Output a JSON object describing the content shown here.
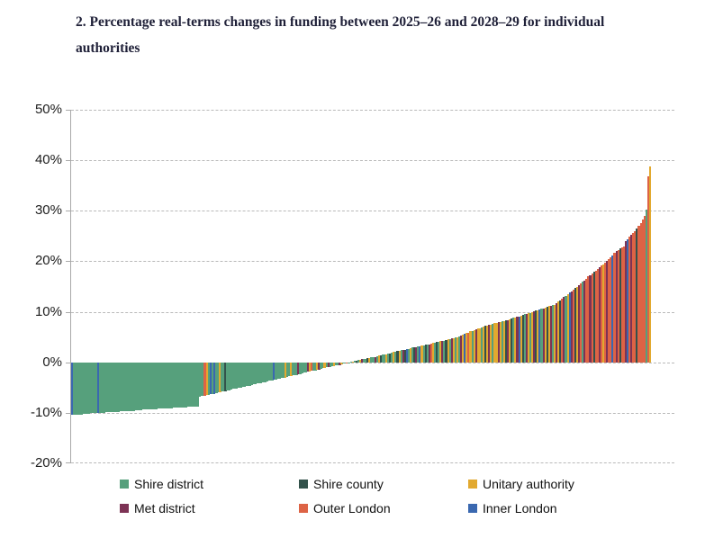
{
  "title": "2. Percentage real-terms changes in funding between 2025–26 and 2028–29 for individual authorities",
  "chart_data": {
    "type": "bar",
    "title": "2. Percentage real-terms changes in funding between 2025–26 and 2028–29 for individual authorities",
    "xlabel": "",
    "ylabel": "",
    "ylim": [
      -20,
      50
    ],
    "yticks": [
      50,
      40,
      30,
      20,
      10,
      0,
      -10,
      -20
    ],
    "ytick_suffix": "%",
    "grid": "dashed-horizontal",
    "legend_position": "bottom",
    "x_description": "Individual local authorities sorted ascending by funding change; x-axis unlabelled",
    "categories": [
      "Shire district",
      "Shire county",
      "Unitary authority",
      "Met district",
      "Outer London",
      "Inner London"
    ],
    "colors": {
      "Shire district": "#56a07c",
      "Shire county": "#33524b",
      "Unitary authority": "#e2a92f",
      "Met district": "#7d3355",
      "Outer London": "#dd6345",
      "Inner London": "#3a68b0"
    },
    "bars": [
      [
        -10.4,
        5
      ],
      [
        -10.4,
        0
      ],
      [
        -10.3,
        0
      ],
      [
        -10.3,
        0
      ],
      [
        -10.3,
        0
      ],
      [
        -10.3,
        0
      ],
      [
        -10.2,
        0
      ],
      [
        -10.2,
        0
      ],
      [
        -10.2,
        0
      ],
      [
        -10.2,
        0
      ],
      [
        -10.1,
        0
      ],
      [
        -10.1,
        0
      ],
      [
        -10.1,
        0
      ],
      [
        -10.1,
        0
      ],
      [
        -10.0,
        5
      ],
      [
        -10.0,
        0
      ],
      [
        -10.0,
        0
      ],
      [
        -10.0,
        0
      ],
      [
        -9.9,
        0
      ],
      [
        -9.9,
        0
      ],
      [
        -9.9,
        0
      ],
      [
        -9.9,
        0
      ],
      [
        -9.8,
        0
      ],
      [
        -9.8,
        0
      ],
      [
        -9.8,
        0
      ],
      [
        -9.8,
        0
      ],
      [
        -9.7,
        0
      ],
      [
        -9.7,
        0
      ],
      [
        -9.7,
        0
      ],
      [
        -9.7,
        0
      ],
      [
        -9.6,
        0
      ],
      [
        -9.6,
        0
      ],
      [
        -9.6,
        0
      ],
      [
        -9.6,
        0
      ],
      [
        -9.5,
        0
      ],
      [
        -9.5,
        0
      ],
      [
        -9.5,
        0
      ],
      [
        -9.5,
        0
      ],
      [
        -9.4,
        0
      ],
      [
        -9.4,
        0
      ],
      [
        -9.4,
        0
      ],
      [
        -9.4,
        0
      ],
      [
        -9.3,
        0
      ],
      [
        -9.3,
        0
      ],
      [
        -9.3,
        0
      ],
      [
        -9.3,
        0
      ],
      [
        -9.2,
        0
      ],
      [
        -9.2,
        0
      ],
      [
        -9.2,
        0
      ],
      [
        -9.2,
        0
      ],
      [
        -9.1,
        0
      ],
      [
        -9.1,
        0
      ],
      [
        -9.1,
        0
      ],
      [
        -9.1,
        0
      ],
      [
        -9.0,
        0
      ],
      [
        -9.0,
        0
      ],
      [
        -9.0,
        0
      ],
      [
        -9.0,
        0
      ],
      [
        -8.9,
        0
      ],
      [
        -8.9,
        0
      ],
      [
        -8.9,
        0
      ],
      [
        -8.9,
        0
      ],
      [
        -8.8,
        0
      ],
      [
        -8.8,
        0
      ],
      [
        -8.8,
        0
      ],
      [
        -8.8,
        0
      ],
      [
        -8.7,
        0
      ],
      [
        -8.7,
        0
      ],
      [
        -6.8,
        0
      ],
      [
        -6.7,
        0
      ],
      [
        -6.6,
        0
      ],
      [
        -6.6,
        4
      ],
      [
        -6.5,
        2
      ],
      [
        -6.4,
        0
      ],
      [
        -6.3,
        5
      ],
      [
        -6.2,
        0
      ],
      [
        -6.2,
        5
      ],
      [
        -6.1,
        0
      ],
      [
        -6.0,
        0
      ],
      [
        -5.9,
        2
      ],
      [
        -5.8,
        0
      ],
      [
        -5.7,
        0
      ],
      [
        -5.7,
        1
      ],
      [
        -5.6,
        0
      ],
      [
        -5.5,
        0
      ],
      [
        -5.4,
        0
      ],
      [
        -5.3,
        0
      ],
      [
        -5.2,
        0
      ],
      [
        -5.2,
        0
      ],
      [
        -5.1,
        0
      ],
      [
        -5.0,
        0
      ],
      [
        -4.9,
        0
      ],
      [
        -4.8,
        0
      ],
      [
        -4.7,
        0
      ],
      [
        -4.6,
        0
      ],
      [
        -4.6,
        0
      ],
      [
        -4.5,
        0
      ],
      [
        -4.4,
        0
      ],
      [
        -4.3,
        0
      ],
      [
        -4.2,
        0
      ],
      [
        -4.1,
        0
      ],
      [
        -4.1,
        0
      ],
      [
        -4.0,
        0
      ],
      [
        -3.9,
        0
      ],
      [
        -3.8,
        0
      ],
      [
        -3.7,
        0
      ],
      [
        -3.6,
        0
      ],
      [
        -3.6,
        0
      ],
      [
        -3.5,
        5
      ],
      [
        -3.4,
        0
      ],
      [
        -3.3,
        0
      ],
      [
        -3.2,
        0
      ],
      [
        -3.1,
        0
      ],
      [
        -3.1,
        0
      ],
      [
        -3.0,
        2
      ],
      [
        -2.9,
        0
      ],
      [
        -2.8,
        0
      ],
      [
        -2.7,
        2
      ],
      [
        -2.6,
        0
      ],
      [
        -2.6,
        0
      ],
      [
        -2.5,
        0
      ],
      [
        -2.4,
        3
      ],
      [
        -2.3,
        0
      ],
      [
        -2.2,
        0
      ],
      [
        -2.1,
        0
      ],
      [
        -2.0,
        0
      ],
      [
        -1.9,
        3
      ],
      [
        -1.8,
        2
      ],
      [
        -1.7,
        4
      ],
      [
        -1.6,
        0
      ],
      [
        -1.6,
        0
      ],
      [
        -1.5,
        2
      ],
      [
        -1.4,
        3
      ],
      [
        -1.3,
        0
      ],
      [
        -1.2,
        0
      ],
      [
        -1.1,
        2
      ],
      [
        -1.0,
        0
      ],
      [
        -1.0,
        3
      ],
      [
        -0.9,
        0
      ],
      [
        -0.8,
        0
      ],
      [
        -0.7,
        2
      ],
      [
        -0.6,
        0
      ],
      [
        -0.5,
        0
      ],
      [
        -0.5,
        3
      ],
      [
        -0.4,
        2
      ],
      [
        -0.3,
        0
      ],
      [
        -0.2,
        0
      ],
      [
        -0.2,
        4
      ],
      [
        -0.1,
        0
      ],
      [
        0.1,
        0
      ],
      [
        0.2,
        2
      ],
      [
        0.3,
        0
      ],
      [
        0.3,
        1
      ],
      [
        0.4,
        0
      ],
      [
        0.5,
        2
      ],
      [
        0.6,
        3
      ],
      [
        0.7,
        0
      ],
      [
        0.7,
        0
      ],
      [
        0.8,
        1
      ],
      [
        0.9,
        2
      ],
      [
        1.0,
        0
      ],
      [
        1.1,
        0
      ],
      [
        1.1,
        3
      ],
      [
        1.2,
        0
      ],
      [
        1.3,
        2
      ],
      [
        1.4,
        1
      ],
      [
        1.5,
        0
      ],
      [
        1.5,
        0
      ],
      [
        1.6,
        2
      ],
      [
        1.7,
        0
      ],
      [
        1.8,
        1
      ],
      [
        1.9,
        0
      ],
      [
        2.0,
        2
      ],
      [
        2.1,
        0
      ],
      [
        2.2,
        1
      ],
      [
        2.3,
        2
      ],
      [
        2.4,
        0
      ],
      [
        2.4,
        3
      ],
      [
        2.5,
        1
      ],
      [
        2.6,
        5
      ],
      [
        2.7,
        0
      ],
      [
        2.8,
        2
      ],
      [
        2.9,
        0
      ],
      [
        3.0,
        1
      ],
      [
        3.0,
        3
      ],
      [
        3.1,
        0
      ],
      [
        3.2,
        5
      ],
      [
        3.3,
        2
      ],
      [
        3.4,
        0
      ],
      [
        3.5,
        1
      ],
      [
        3.6,
        0
      ],
      [
        3.6,
        3
      ],
      [
        3.7,
        4
      ],
      [
        3.8,
        2
      ],
      [
        3.9,
        0
      ],
      [
        4.0,
        1
      ],
      [
        4.1,
        0
      ],
      [
        4.2,
        2
      ],
      [
        4.2,
        3
      ],
      [
        4.3,
        0
      ],
      [
        4.4,
        1
      ],
      [
        4.5,
        2
      ],
      [
        4.6,
        0
      ],
      [
        4.7,
        3
      ],
      [
        4.8,
        2
      ],
      [
        4.9,
        0
      ],
      [
        5.0,
        2
      ],
      [
        5.2,
        0
      ],
      [
        5.3,
        3
      ],
      [
        5.5,
        2
      ],
      [
        5.6,
        5
      ],
      [
        5.8,
        2
      ],
      [
        5.9,
        4
      ],
      [
        6.1,
        2
      ],
      [
        6.2,
        0
      ],
      [
        6.4,
        2
      ],
      [
        6.5,
        3
      ],
      [
        6.7,
        2
      ],
      [
        6.8,
        2
      ],
      [
        6.9,
        0
      ],
      [
        7.1,
        2
      ],
      [
        7.2,
        1
      ],
      [
        7.3,
        2
      ],
      [
        7.4,
        3
      ],
      [
        7.5,
        2
      ],
      [
        7.6,
        0
      ],
      [
        7.7,
        2
      ],
      [
        7.8,
        2
      ],
      [
        7.9,
        3
      ],
      [
        8.0,
        2
      ],
      [
        8.1,
        0
      ],
      [
        8.2,
        2
      ],
      [
        8.3,
        1
      ],
      [
        8.4,
        3
      ],
      [
        8.5,
        2
      ],
      [
        8.6,
        1
      ],
      [
        8.8,
        0
      ],
      [
        8.9,
        2
      ],
      [
        9.0,
        3
      ],
      [
        9.1,
        5
      ],
      [
        9.2,
        2
      ],
      [
        9.4,
        1
      ],
      [
        9.5,
        0
      ],
      [
        9.6,
        3
      ],
      [
        9.7,
        2
      ],
      [
        9.8,
        0
      ],
      [
        10.0,
        2
      ],
      [
        10.1,
        3
      ],
      [
        10.2,
        1
      ],
      [
        10.3,
        2
      ],
      [
        10.5,
        5
      ],
      [
        10.6,
        0
      ],
      [
        10.7,
        3
      ],
      [
        10.8,
        2
      ],
      [
        11.0,
        1
      ],
      [
        11.1,
        2
      ],
      [
        11.2,
        3
      ],
      [
        11.3,
        0
      ],
      [
        11.4,
        2
      ],
      [
        11.7,
        3
      ],
      [
        12.0,
        2
      ],
      [
        12.3,
        1
      ],
      [
        12.6,
        4
      ],
      [
        12.9,
        3
      ],
      [
        13.2,
        0
      ],
      [
        13.5,
        2
      ],
      [
        13.8,
        5
      ],
      [
        14.1,
        3
      ],
      [
        14.4,
        4
      ],
      [
        14.7,
        1
      ],
      [
        15.0,
        2
      ],
      [
        15.3,
        3
      ],
      [
        15.6,
        4
      ],
      [
        15.9,
        0
      ],
      [
        16.2,
        3
      ],
      [
        16.5,
        4
      ],
      [
        17.0,
        4
      ],
      [
        17.3,
        3
      ],
      [
        17.6,
        4
      ],
      [
        17.9,
        1
      ],
      [
        18.2,
        4
      ],
      [
        18.5,
        4
      ],
      [
        18.8,
        3
      ],
      [
        19.1,
        4
      ],
      [
        19.4,
        2
      ],
      [
        19.7,
        4
      ],
      [
        20.0,
        3
      ],
      [
        20.4,
        4
      ],
      [
        20.8,
        4
      ],
      [
        21.2,
        5
      ],
      [
        21.6,
        4
      ],
      [
        22.0,
        3
      ],
      [
        22.3,
        4
      ],
      [
        22.5,
        1
      ],
      [
        22.7,
        4
      ],
      [
        23.0,
        4
      ],
      [
        24.0,
        3
      ],
      [
        24.4,
        5
      ],
      [
        24.8,
        4
      ],
      [
        25.2,
        3
      ],
      [
        25.6,
        4
      ],
      [
        26.0,
        4
      ],
      [
        26.5,
        1
      ],
      [
        27.0,
        4
      ],
      [
        27.6,
        4
      ],
      [
        28.2,
        4
      ],
      [
        29.0,
        4
      ],
      [
        30.3,
        0
      ],
      [
        36.8,
        4
      ],
      [
        38.8,
        2
      ]
    ]
  }
}
